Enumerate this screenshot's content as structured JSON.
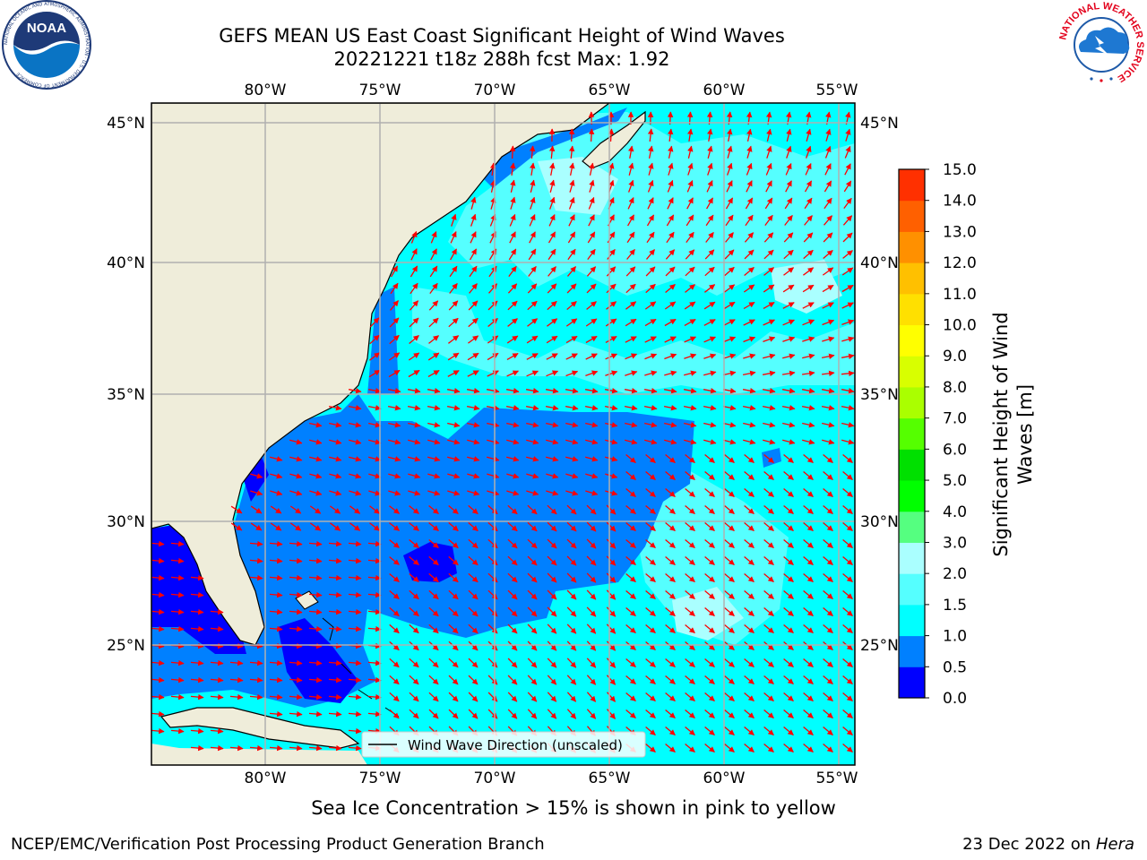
{
  "header": {
    "title_line1": "GEFS MEAN US East Coast Significant Height of Wind Waves",
    "title_line2": "20221221 t18z 288h fcst   Max: 1.92"
  },
  "map": {
    "lon_labels": [
      "80°W",
      "75°W",
      "70°W",
      "65°W",
      "60°W",
      "55°W"
    ],
    "lat_labels": [
      "45°N",
      "40°N",
      "35°N",
      "30°N",
      "25°N"
    ],
    "legend_label": "Wind Wave Direction (unscaled)",
    "colors": {
      "land": "#efedda",
      "grid": "#b0b0b0",
      "arrow": "#ff0000",
      "sea_0_0.5": "#0000ff",
      "sea_0.5_1.0": "#0080ff",
      "sea_1.0_1.5": "#00ffff",
      "sea_1.5_2.0": "#55ffff",
      "sea_2.0_3.0": "#aaffff"
    }
  },
  "colorbar": {
    "label_line1": "Significant Height of Wind",
    "label_line2": "Waves [m]",
    "ticks": [
      "0.0",
      "0.5",
      "1.0",
      "1.5",
      "2.0",
      "3.0",
      "4.0",
      "5.0",
      "6.0",
      "7.0",
      "8.0",
      "9.0",
      "10.0",
      "11.0",
      "12.0",
      "13.0",
      "14.0",
      "15.0"
    ],
    "colors": [
      "#0000ff",
      "#0080ff",
      "#00ffff",
      "#55ffff",
      "#aaffff",
      "#55ff80",
      "#00ff00",
      "#00e000",
      "#55ff00",
      "#aaff00",
      "#d8ff00",
      "#ffff00",
      "#ffe000",
      "#ffc000",
      "#ff9000",
      "#ff6000",
      "#ff3000"
    ]
  },
  "footer": {
    "sea_ice_note": "Sea Ice Concentration > 15% is shown in pink to yellow",
    "credit_left": "NCEP/EMC/Verification Post Processing Product Generation Branch",
    "date": "23 Dec 2022 on",
    "host": "Hera"
  },
  "logos": {
    "noaa_text": "NOAA",
    "noaa_ring_text": "NATIONAL OCEANIC AND ATMOSPHERIC ADMINISTRATION · U.S. DEPARTMENT OF COMMERCE",
    "nws_ring_text": "NATIONAL WEATHER SERVICE"
  }
}
